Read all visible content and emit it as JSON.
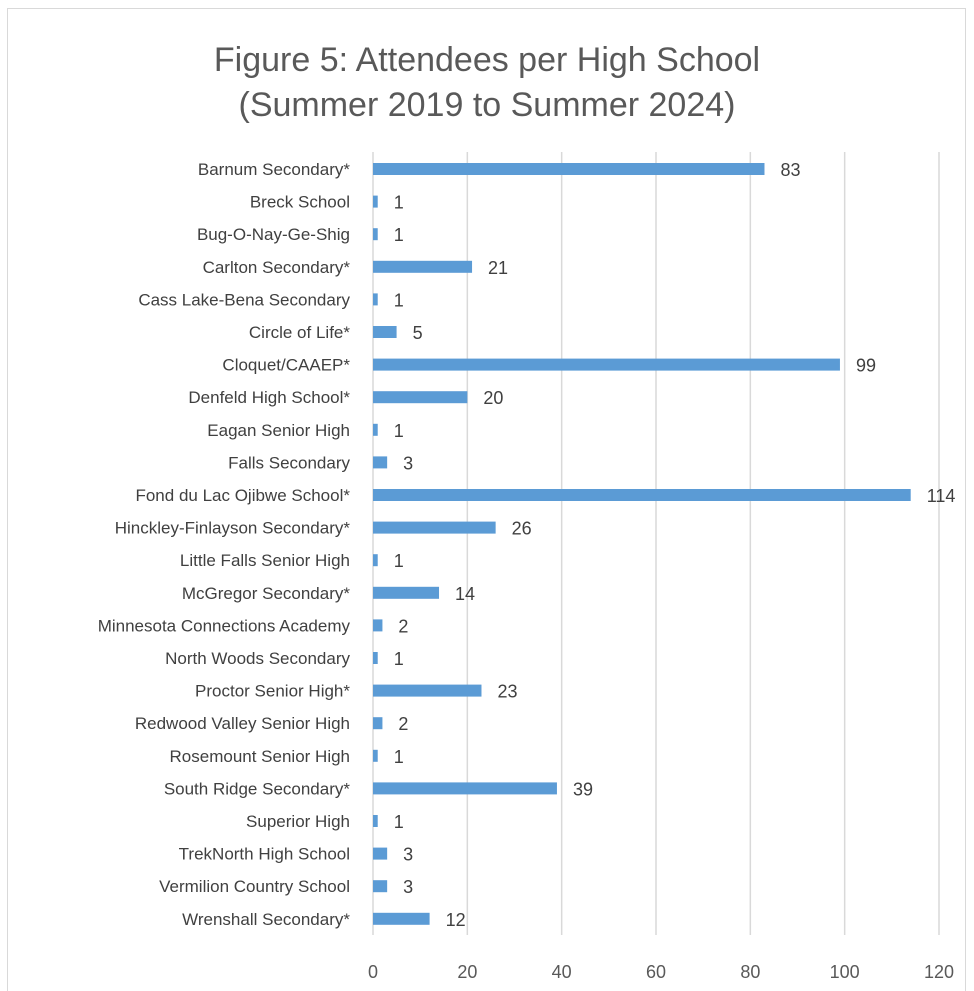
{
  "chart_data": {
    "type": "bar",
    "orientation": "horizontal",
    "title": "Figure 5: Attendees per High School\n(Summer 2019 to Summer 2024)",
    "title_lines": [
      "Figure 5: Attendees per High School",
      "(Summer 2019 to Summer 2024)"
    ],
    "categories": [
      "Barnum Secondary*",
      "Breck School",
      "Bug-O-Nay-Ge-Shig",
      "Carlton Secondary*",
      "Cass Lake-Bena Secondary",
      "Circle of Life*",
      "Cloquet/CAAEP*",
      "Denfeld High School*",
      "Eagan Senior High",
      "Falls Secondary",
      "Fond du Lac Ojibwe School*",
      "Hinckley-Finlayson Secondary*",
      "Little Falls Senior High",
      "McGregor Secondary*",
      "Minnesota Connections Academy",
      "North Woods Secondary",
      "Proctor Senior High*",
      "Redwood Valley Senior High",
      "Rosemount Senior High",
      "South Ridge Secondary*",
      "Superior High",
      "TrekNorth High School",
      "Vermilion Country School",
      "Wrenshall Secondary*"
    ],
    "values": [
      83,
      1,
      1,
      21,
      1,
      5,
      99,
      20,
      1,
      3,
      114,
      26,
      1,
      14,
      2,
      1,
      23,
      2,
      1,
      39,
      1,
      3,
      3,
      12
    ],
    "xlim": [
      0,
      120
    ],
    "xticks": [
      0,
      20,
      40,
      60,
      80,
      100,
      120
    ],
    "xlabel": "",
    "ylabel": "",
    "grid": "vertical",
    "legend": "none",
    "bar_color": "#5b9bd5",
    "gridline_color": "#d9d9d9"
  }
}
